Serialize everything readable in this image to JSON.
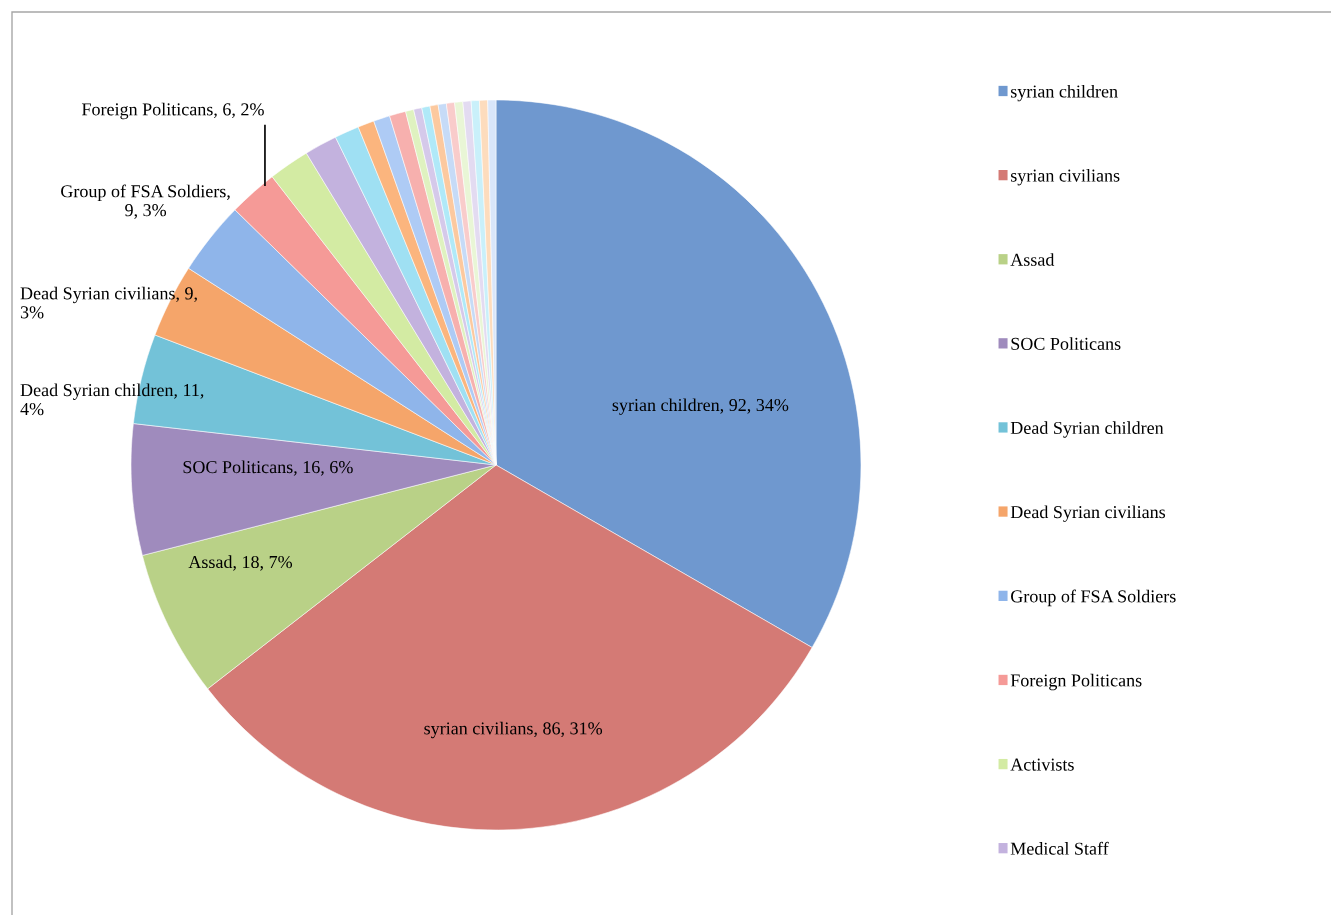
{
  "chart_data": {
    "type": "pie",
    "categories": [
      "syrian children",
      "syrian civilians",
      "Assad",
      "SOC Politicans",
      "Dead Syrian children",
      "Dead Syrian civilians",
      "Group of FSA Soldiers",
      "Foreign Politicans",
      "Activists",
      "Medical Staff",
      null,
      null,
      null,
      null,
      null,
      null,
      null,
      null,
      null,
      null,
      null,
      null,
      null,
      null,
      null
    ],
    "values": [
      92,
      86,
      18,
      16,
      11,
      9,
      9,
      6,
      5,
      4,
      3,
      2,
      2,
      2,
      1,
      1,
      1,
      1,
      1,
      1,
      1,
      1,
      1,
      1,
      1
    ],
    "colors": [
      "#6f98cf",
      "#d47a75",
      "#b9d187",
      "#9f8bbd",
      "#73c2d8",
      "#f5a56a",
      "#8fb5ea",
      "#f59a97",
      "#d3eba3",
      "#c3b2de",
      "#9fe0f3",
      "#fbb57e",
      "#aecbf5",
      "#f7b0ae",
      "#dff2c0",
      "#d5c9ea",
      "#b0e9f8",
      "#fcc99f",
      "#c6dbf7",
      "#f9cccb",
      "#e9f6d6",
      "#e3dbf1",
      "#c9f0fa",
      "#fddcbd",
      "#d9e6fa"
    ],
    "value_labels": [
      "syrian children, 92, 34%",
      "syrian civilians, 86, 31%",
      "Assad, 18, 7%",
      "SOC Politicans, 16, 6%",
      "Dead Syrian children, 11,\n4%",
      "Dead Syrian civilians, 9,\n3%",
      "Group of FSA Soldiers,\n9, 3%",
      "Foreign Politicans, 6, 2%",
      null,
      null,
      null,
      null,
      null,
      null,
      null,
      null,
      null,
      null,
      null,
      null,
      null,
      null,
      null,
      null,
      null
    ],
    "legend": "right"
  }
}
